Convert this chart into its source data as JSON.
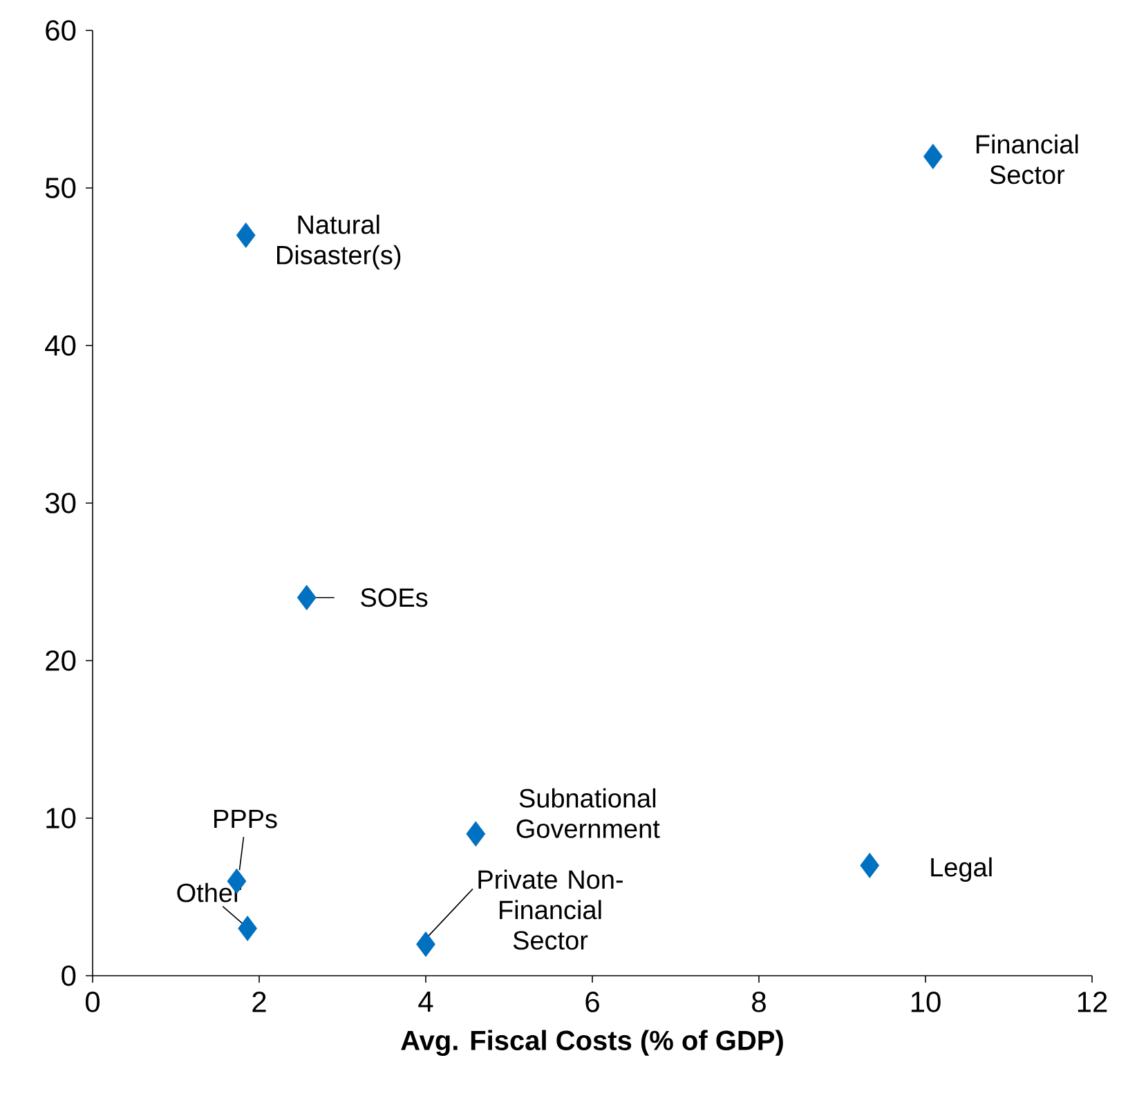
{
  "chart_data": {
    "type": "scatter",
    "xlabel": "Avg. Fiscal Costs (% of GDP)",
    "x": [
      10.09,
      1.84,
      2.57,
      4.6,
      9.33,
      1.73,
      1.86,
      4.0
    ],
    "values": [
      52,
      47,
      24,
      9,
      7,
      6,
      3,
      2
    ],
    "color": "#0070c0",
    "marker": "diamond",
    "xlim": [
      0,
      12
    ],
    "ylim": [
      0,
      60
    ],
    "xticks": [
      0,
      2,
      4,
      6,
      8,
      10,
      12
    ],
    "yticks": [
      0,
      10,
      20,
      30,
      40,
      50,
      60
    ],
    "grid": false,
    "annotations": [
      {
        "text": "Financial Sector",
        "x": 10.09,
        "y": 52
      },
      {
        "text": "Natural Disaster(s)",
        "x": 1.84,
        "y": 47
      },
      {
        "text": "SOEs",
        "x": 2.57,
        "y": 24
      },
      {
        "text": "Subnational Government",
        "x": 4.6,
        "y": 9
      },
      {
        "text": "Legal",
        "x": 9.33,
        "y": 7
      },
      {
        "text": "PPPs",
        "x": 1.73,
        "y": 6
      },
      {
        "text": "Other",
        "x": 1.86,
        "y": 3
      },
      {
        "text": "Private Non-Financial Sector",
        "x": 4.0,
        "y": 2
      }
    ]
  }
}
